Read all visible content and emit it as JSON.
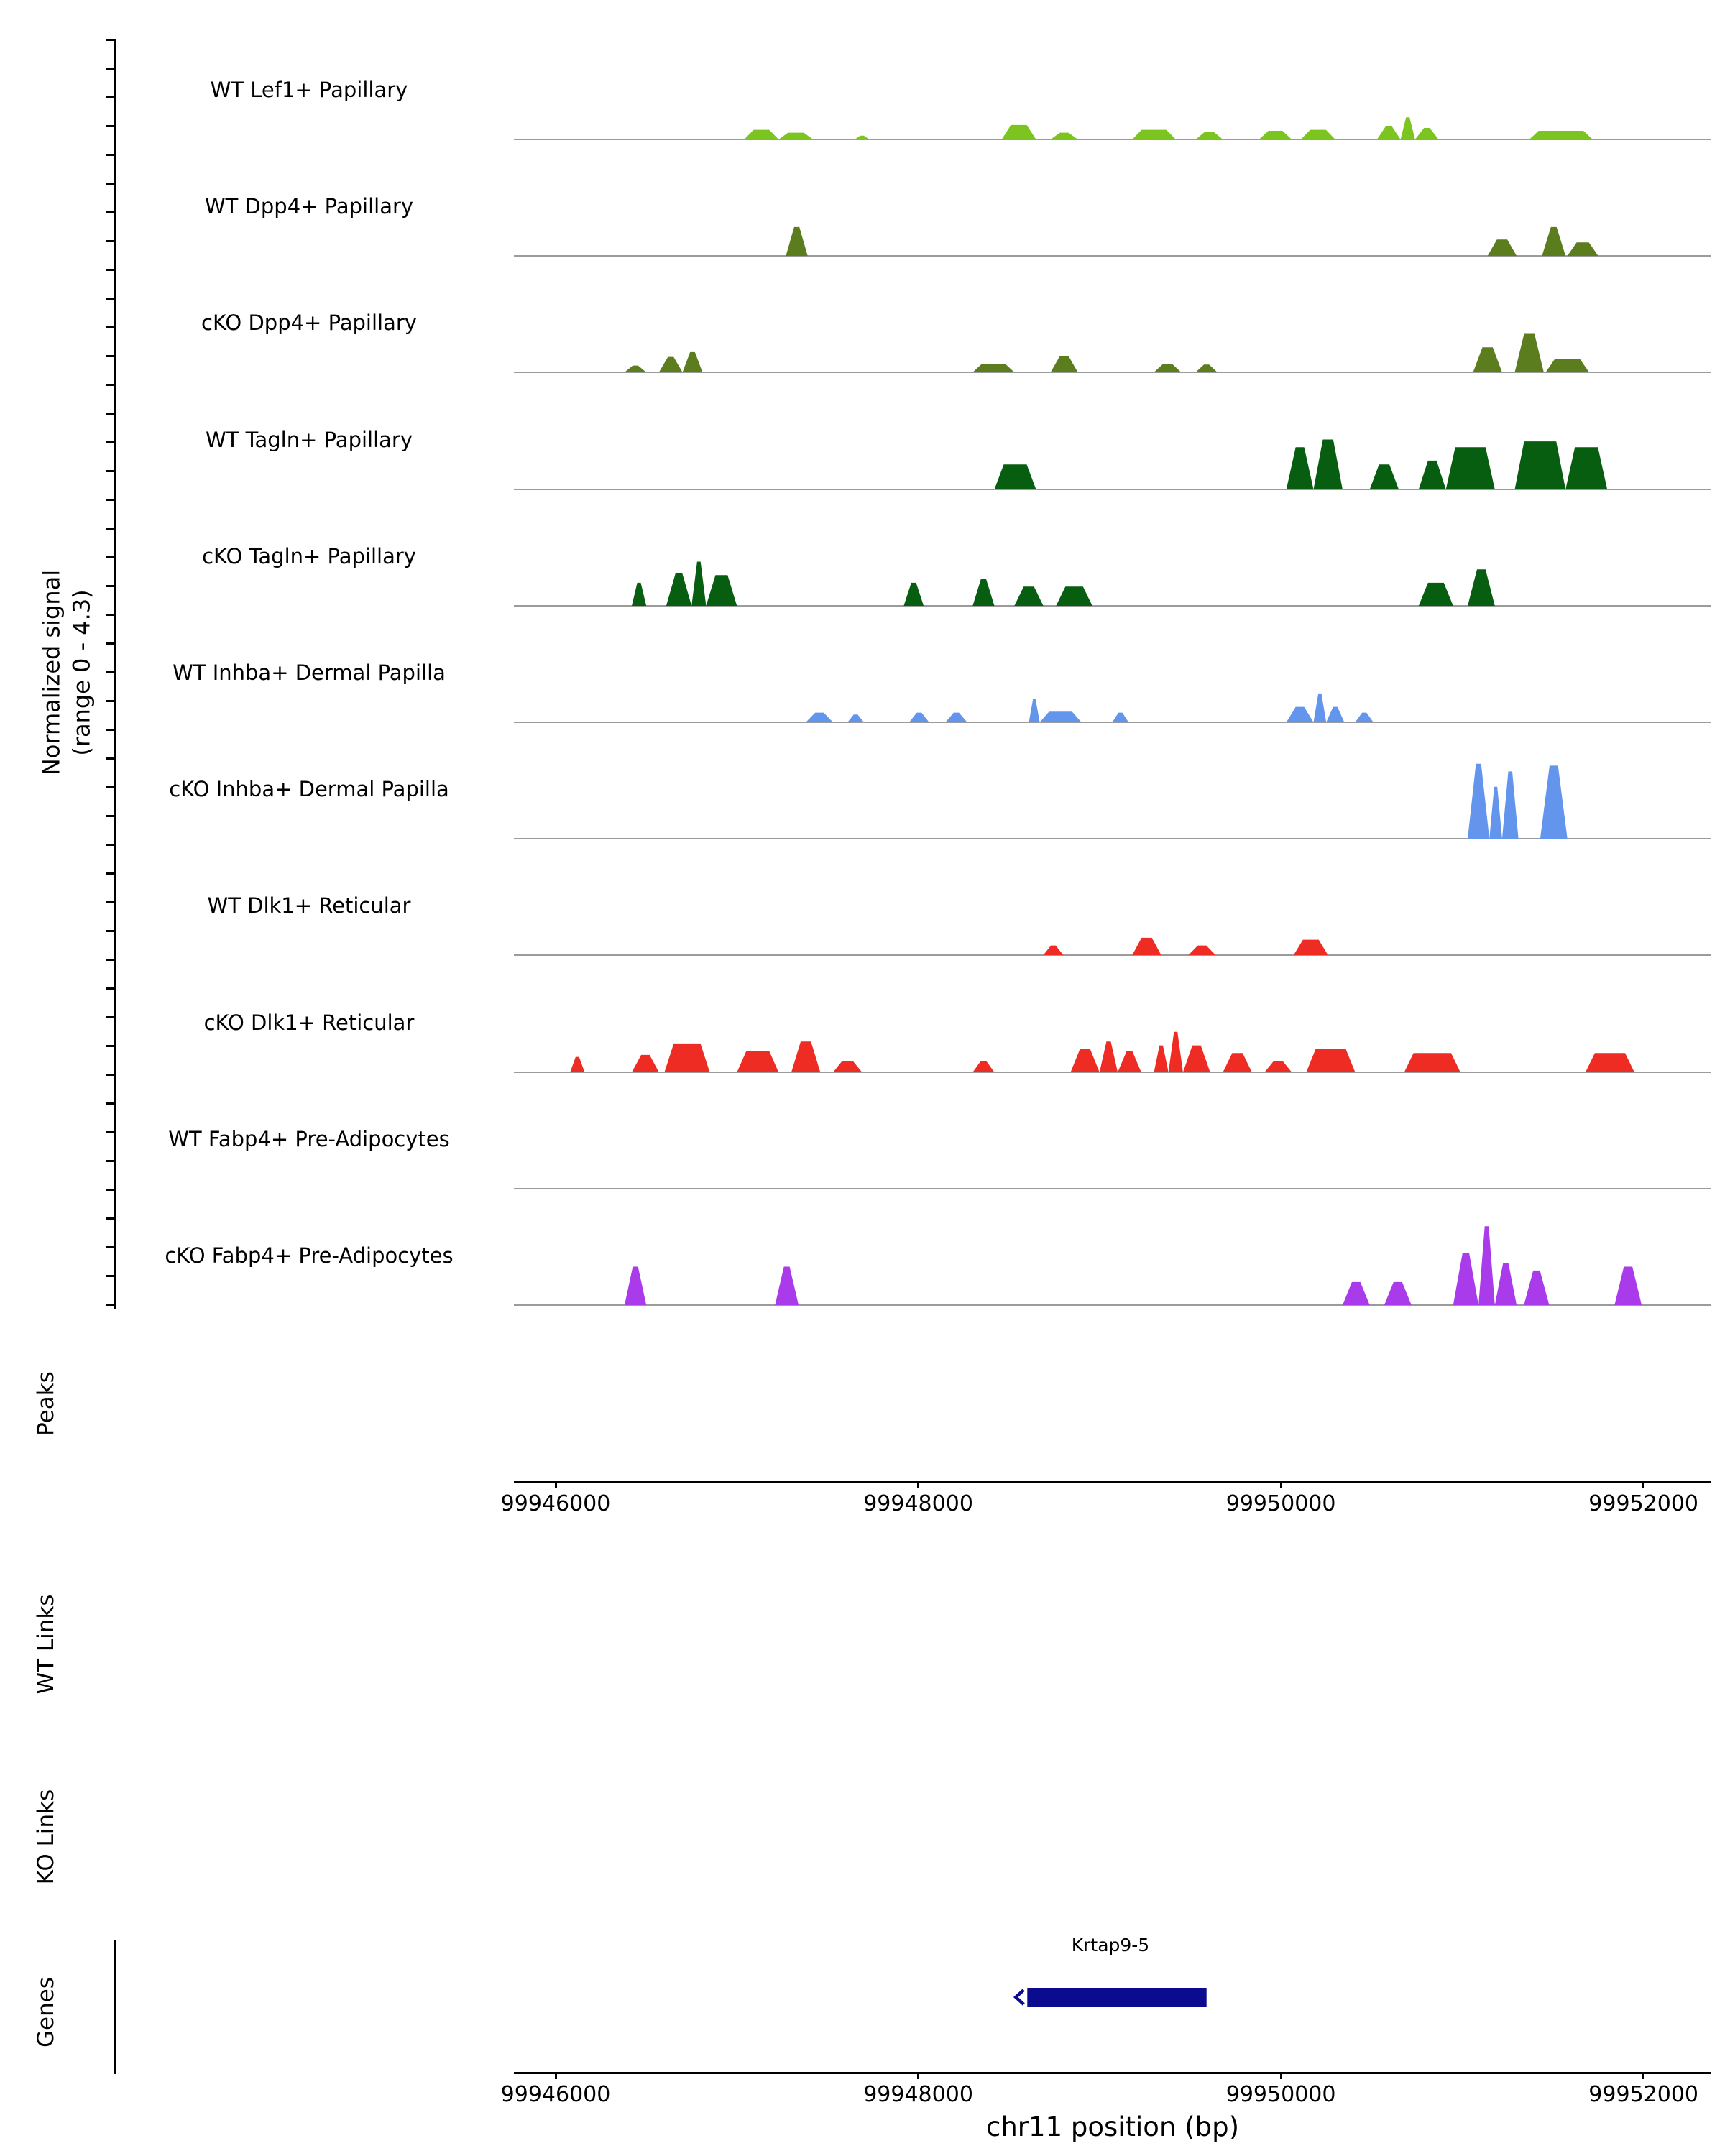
{
  "labels": {
    "y_axis_line1": "Normalized signal",
    "y_axis_line2": "(range 0 - 4.3)",
    "x_axis_title": "chr11 position (bp)",
    "peaks_section": "Peaks",
    "wt_links_section": "WT Links",
    "ko_links_section": "KO Links",
    "genes_section": "Genes"
  },
  "chart_data": {
    "type": "area",
    "title": "",
    "xlabel": "chr11 position (bp)",
    "ylabel": "Normalized signal (range 0 - 4.3)",
    "region": {
      "chrom": "chr11",
      "start": 99945770,
      "end": 99952370
    },
    "signal_range": [
      0,
      4.3
    ],
    "x_ticks": [
      99946000,
      99948000,
      99950000,
      99952000
    ],
    "x_tick_labels": [
      "99946000",
      "99948000",
      "99950000",
      "99952000"
    ],
    "tracks": [
      {
        "label": "WT Lef1+ Papillary",
        "color": "#7CC41F",
        "peaks": [
          [
            99947040,
            99947230,
            0.5
          ],
          [
            99947230,
            99947420,
            0.35
          ],
          [
            99947650,
            99947730,
            0.2
          ],
          [
            99948460,
            99948650,
            0.75
          ],
          [
            99948730,
            99948880,
            0.35
          ],
          [
            99949180,
            99949420,
            0.5
          ],
          [
            99949530,
            99949680,
            0.4
          ],
          [
            99949880,
            99950060,
            0.45
          ],
          [
            99950110,
            99950300,
            0.5
          ],
          [
            99950530,
            99950660,
            0.7
          ],
          [
            99950660,
            99950740,
            1.15
          ],
          [
            99950740,
            99950870,
            0.6
          ],
          [
            99951370,
            99951720,
            0.45
          ]
        ]
      },
      {
        "label": "WT Dpp4+ Papillary",
        "color": "#5B7D1E",
        "peaks": [
          [
            99947270,
            99947390,
            1.5
          ],
          [
            99951140,
            99951300,
            0.85
          ],
          [
            99951440,
            99951570,
            1.5
          ],
          [
            99951580,
            99951750,
            0.7
          ]
        ]
      },
      {
        "label": "cKO Dpp4+ Papillary",
        "color": "#5B7D1E",
        "peaks": [
          [
            99946380,
            99946500,
            0.35
          ],
          [
            99946570,
            99946700,
            0.8
          ],
          [
            99946700,
            99946810,
            1.05
          ],
          [
            99948300,
            99948530,
            0.45
          ],
          [
            99948730,
            99948880,
            0.85
          ],
          [
            99949300,
            99949450,
            0.45
          ],
          [
            99949530,
            99949650,
            0.4
          ],
          [
            99951060,
            99951220,
            1.3
          ],
          [
            99951290,
            99951450,
            2.0
          ],
          [
            99951460,
            99951700,
            0.7
          ]
        ]
      },
      {
        "label": "WT Tagln+ Papillary",
        "color": "#085E10",
        "peaks": [
          [
            99948420,
            99948650,
            1.3
          ],
          [
            99950030,
            99950180,
            2.2
          ],
          [
            99950180,
            99950340,
            2.6
          ],
          [
            99950490,
            99950650,
            1.3
          ],
          [
            99950760,
            99950910,
            1.5
          ],
          [
            99950910,
            99951180,
            2.2
          ],
          [
            99951290,
            99951570,
            2.5
          ],
          [
            99951570,
            99951800,
            2.2
          ]
        ]
      },
      {
        "label": "cKO Tagln+ Papillary",
        "color": "#085E10",
        "peaks": [
          [
            99946420,
            99946500,
            1.2
          ],
          [
            99946610,
            99946750,
            1.7
          ],
          [
            99946750,
            99946830,
            2.3
          ],
          [
            99946830,
            99947000,
            1.6
          ],
          [
            99947920,
            99948030,
            1.2
          ],
          [
            99948300,
            99948420,
            1.4
          ],
          [
            99948530,
            99948690,
            1.0
          ],
          [
            99948760,
            99948960,
            1.0
          ],
          [
            99950760,
            99950950,
            1.2
          ],
          [
            99951030,
            99951180,
            1.9
          ]
        ]
      },
      {
        "label": "WT Inhba+ Dermal Papilla",
        "color": "#6495ED",
        "peaks": [
          [
            99947380,
            99947530,
            0.5
          ],
          [
            99947610,
            99947700,
            0.4
          ],
          [
            99947950,
            99948060,
            0.5
          ],
          [
            99948150,
            99948270,
            0.5
          ],
          [
            99948610,
            99948670,
            1.2
          ],
          [
            99948670,
            99948900,
            0.55
          ],
          [
            99949070,
            99949160,
            0.5
          ],
          [
            99950030,
            99950180,
            0.8
          ],
          [
            99950180,
            99950250,
            1.5
          ],
          [
            99950250,
            99950350,
            0.8
          ],
          [
            99950410,
            99950510,
            0.5
          ]
        ]
      },
      {
        "label": "cKO Inhba+ Dermal Papilla",
        "color": "#6495ED",
        "peaks": [
          [
            99951030,
            99951150,
            3.9
          ],
          [
            99951150,
            99951220,
            2.7
          ],
          [
            99951220,
            99951310,
            3.5
          ],
          [
            99951430,
            99951580,
            3.8
          ]
        ]
      },
      {
        "label": "WT Dlk1+ Reticular",
        "color": "#EE2C23",
        "peaks": [
          [
            99948690,
            99948800,
            0.5
          ],
          [
            99949180,
            99949340,
            0.9
          ],
          [
            99949490,
            99949640,
            0.5
          ],
          [
            99950070,
            99950260,
            0.8
          ]
        ]
      },
      {
        "label": "cKO Dlk1+ Reticular",
        "color": "#EE2C23",
        "peaks": [
          [
            99946080,
            99946160,
            0.8
          ],
          [
            99946420,
            99946570,
            0.9
          ],
          [
            99946600,
            99946850,
            1.5
          ],
          [
            99947000,
            99947230,
            1.1
          ],
          [
            99947300,
            99947460,
            1.6
          ],
          [
            99947530,
            99947690,
            0.6
          ],
          [
            99948300,
            99948420,
            0.6
          ],
          [
            99948840,
            99949000,
            1.2
          ],
          [
            99949000,
            99949100,
            1.6
          ],
          [
            99949100,
            99949230,
            1.1
          ],
          [
            99949300,
            99949380,
            1.4
          ],
          [
            99949380,
            99949460,
            2.1
          ],
          [
            99949460,
            99949610,
            1.4
          ],
          [
            99949680,
            99949840,
            1.0
          ],
          [
            99949910,
            99950060,
            0.6
          ],
          [
            99950140,
            99950410,
            1.2
          ],
          [
            99950680,
            99950990,
            1.0
          ],
          [
            99951680,
            99951950,
            1.0
          ]
        ]
      },
      {
        "label": "WT Fabp4+ Pre-Adipocytes",
        "color": "#A93BEB",
        "peaks": []
      },
      {
        "label": "cKO Fabp4+ Pre-Adipocytes",
        "color": "#A93BEB",
        "peaks": [
          [
            99946380,
            99946500,
            2.0
          ],
          [
            99947210,
            99947340,
            2.0
          ],
          [
            99950340,
            99950490,
            1.2
          ],
          [
            99950570,
            99950720,
            1.2
          ],
          [
            99950950,
            99951090,
            2.7
          ],
          [
            99951090,
            99951180,
            4.1
          ],
          [
            99951180,
            99951300,
            2.2
          ],
          [
            99951340,
            99951480,
            1.8
          ],
          [
            99951840,
            99951990,
            2.0
          ]
        ]
      }
    ],
    "sections": [
      {
        "label": "Peaks",
        "content": "empty"
      },
      {
        "label": "WT Links",
        "content": "empty"
      },
      {
        "label": "KO Links",
        "content": "empty"
      },
      {
        "label": "Genes",
        "genes": [
          {
            "name": "Krtap9-5",
            "start": 99948530,
            "end": 99949590,
            "strand": "-",
            "color": "#0B0B8F"
          }
        ]
      }
    ]
  }
}
